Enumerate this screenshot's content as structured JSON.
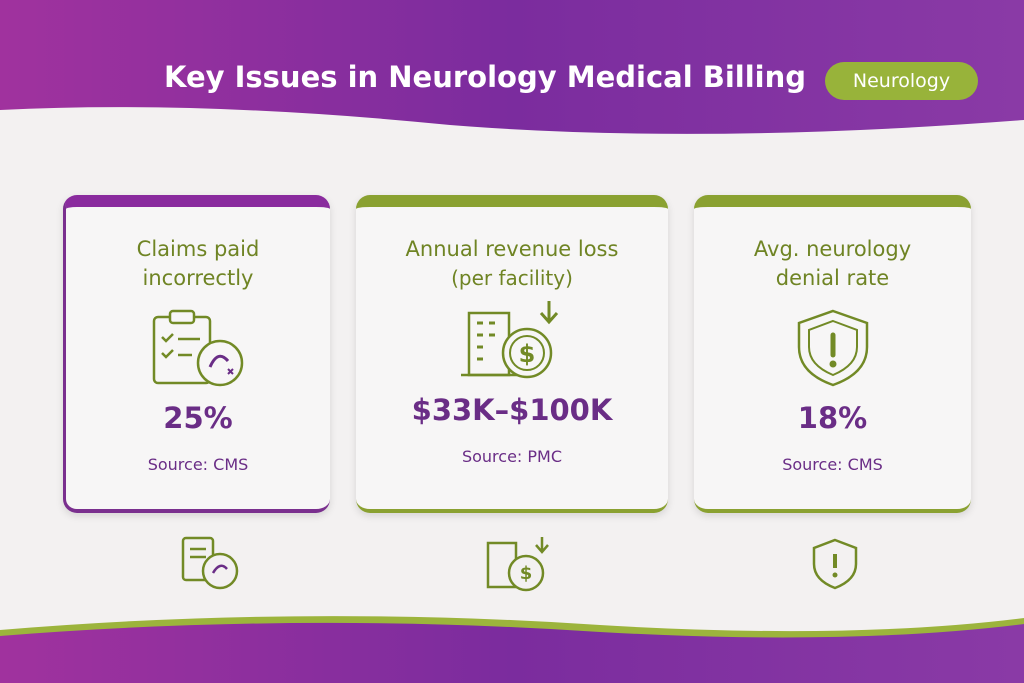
{
  "header": {
    "title": "Key Issues in Neurology Medical Billing",
    "badge": "Neurology"
  },
  "cards": [
    {
      "title_lines": [
        "Claims paid",
        "incorrectly"
      ],
      "value": "25%",
      "source": "Source: CMS"
    },
    {
      "title_lines": [
        "Annual revenue loss",
        "(per facility)"
      ],
      "value": "$33K–$100K",
      "source": "Source: PMC"
    },
    {
      "title_lines": [
        "Avg. neurology",
        "denial rate"
      ],
      "value": "18%",
      "source": "Source: CMS"
    }
  ]
}
